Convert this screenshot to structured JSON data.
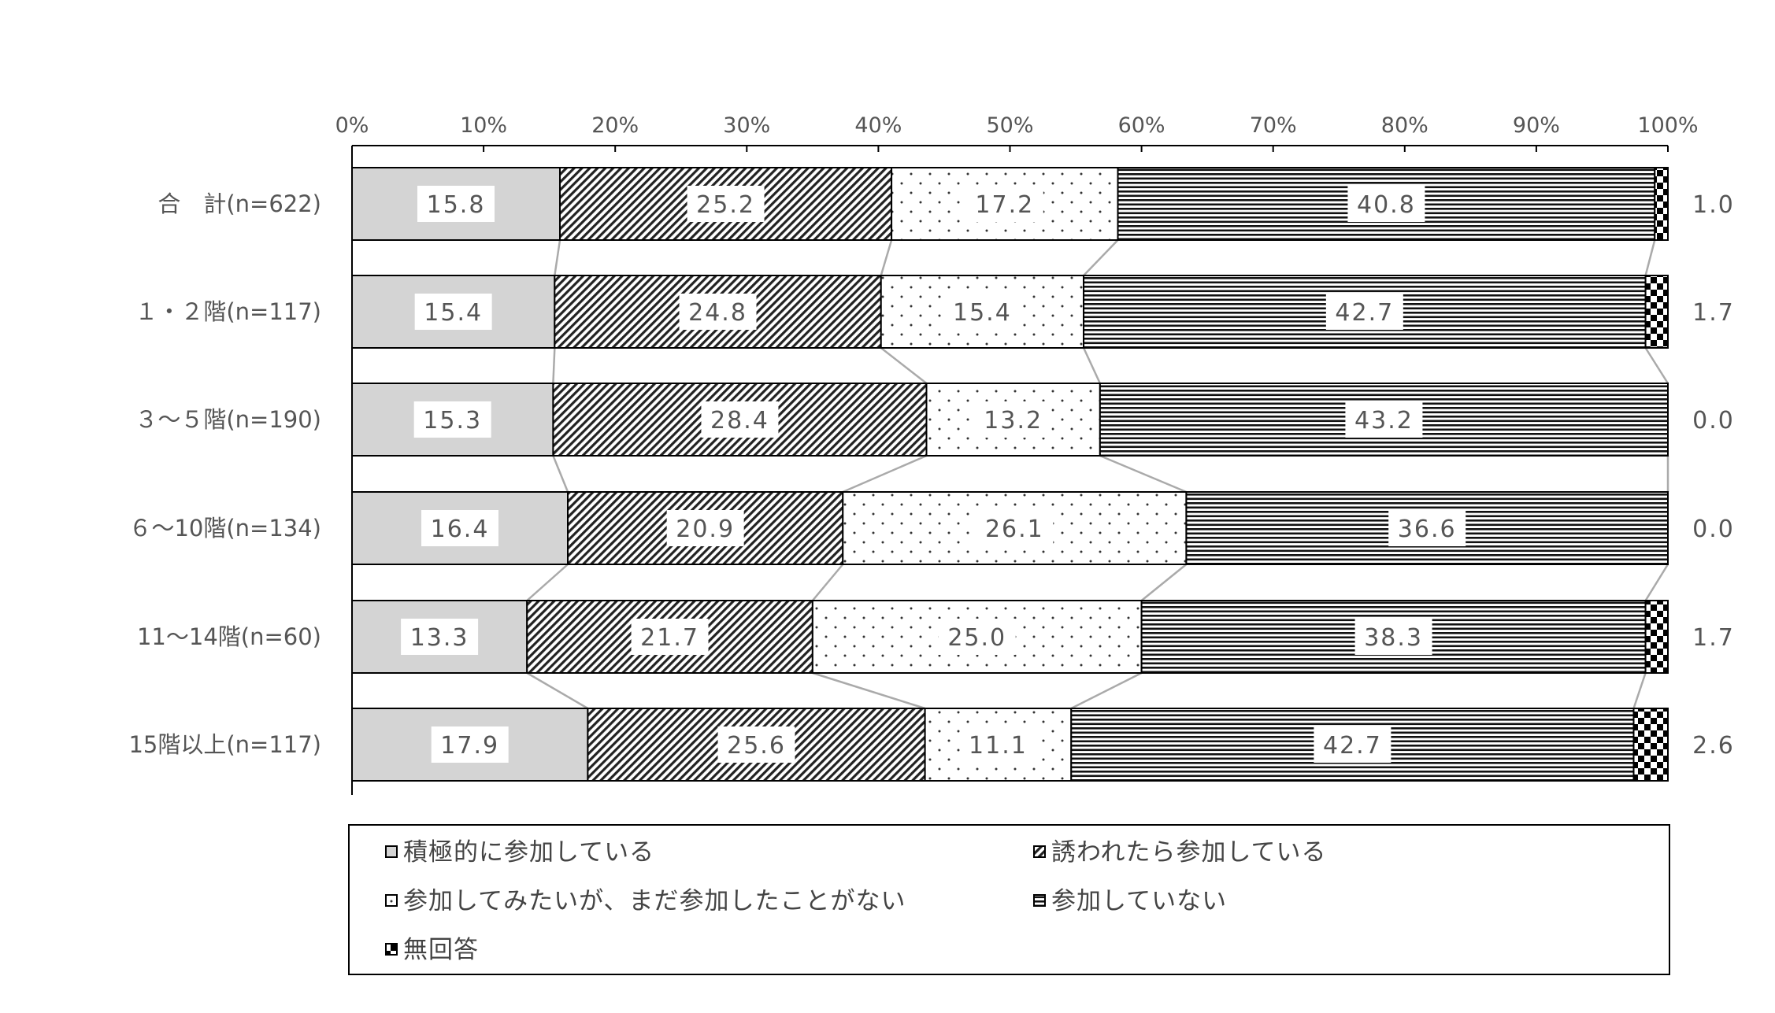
{
  "chart_data": {
    "type": "bar",
    "orientation": "horizontal",
    "stacked": true,
    "percent_stacked": true,
    "x_ticks": [
      "0%",
      "10%",
      "20%",
      "30%",
      "40%",
      "50%",
      "60%",
      "70%",
      "80%",
      "90%",
      "100%"
    ],
    "xlim": [
      0,
      100
    ],
    "categories": [
      "合　計(n=622)",
      "１・２階(n=117)",
      "３～５階(n=190)",
      "６～10階(n=134)",
      "11～14階(n=60)",
      "15階以上(n=117)"
    ],
    "series": [
      {
        "name": "積極的に参加している",
        "pattern": "solid-gray",
        "values": [
          15.8,
          15.4,
          15.3,
          16.4,
          13.3,
          17.9
        ],
        "labels": [
          "15.8",
          "15.4",
          "15.3",
          "16.4",
          "13.3",
          "17.9"
        ]
      },
      {
        "name": "誘われたら参加している",
        "pattern": "diagonal-hatch",
        "values": [
          25.2,
          24.8,
          28.4,
          20.9,
          21.7,
          25.6
        ],
        "labels": [
          "25.2",
          "24.8",
          "28.4",
          "20.9",
          "21.7",
          "25.6"
        ]
      },
      {
        "name": "参加してみたいが、まだ参加したことがない",
        "pattern": "dots",
        "values": [
          17.2,
          15.4,
          13.2,
          26.1,
          25.0,
          11.1
        ],
        "labels": [
          "17.2",
          "15.4",
          "13.2",
          "26.1",
          "25.0",
          "11.1"
        ]
      },
      {
        "name": "参加していない",
        "pattern": "horizontal-lines",
        "values": [
          40.8,
          42.7,
          43.2,
          36.6,
          38.3,
          42.7
        ],
        "labels": [
          "40.8",
          "42.7",
          "43.2",
          "36.6",
          "38.3",
          "42.7"
        ]
      },
      {
        "name": "無回答",
        "pattern": "checker",
        "values": [
          1.0,
          1.7,
          0.0,
          0.0,
          1.7,
          2.6
        ],
        "labels": [
          "1.0",
          "1.7",
          "0.0",
          "0.0",
          "1.7",
          "2.6"
        ]
      }
    ],
    "legend": "bottom",
    "series_connector_lines": true,
    "colors": {
      "bar_fill": "#d4d4d4",
      "bar_stroke": "#000000",
      "text": "#555555",
      "connector": "#aaaaaa"
    }
  }
}
